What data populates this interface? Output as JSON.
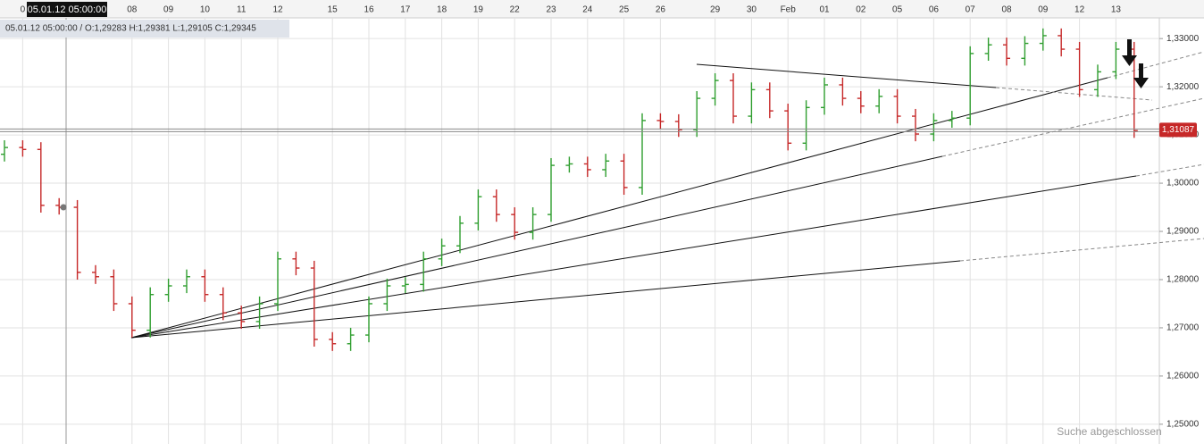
{
  "chart_data": {
    "type": "ohlc",
    "crosshair_time": "05.01.12 05:00:00",
    "info": "05.01.12 05:00:00 / O:1,29283 H:1,29381 L:1,29105 C:1,29345",
    "status": "Suche abgeschlossen",
    "last_price": {
      "value": 1.31087,
      "label": "1,31087"
    },
    "up_color": "#2f9e2f",
    "down_color": "#c62828",
    "grid": true,
    "ylim": [
      1.2459,
      1.338
    ],
    "yticks": [
      {
        "value": 1.33,
        "label": "1,33000"
      },
      {
        "value": 1.32,
        "label": "1,32000"
      },
      {
        "value": 1.31,
        "label": "1,31000"
      },
      {
        "value": 1.3,
        "label": "1,30000"
      },
      {
        "value": 1.29,
        "label": "1,29000"
      },
      {
        "value": 1.28,
        "label": "1,28000"
      },
      {
        "value": 1.27,
        "label": "1,27000"
      },
      {
        "value": 1.26,
        "label": "1,26000"
      },
      {
        "value": 1.25,
        "label": "1,25000"
      }
    ],
    "categories": [
      null,
      "0",
      null,
      null,
      null,
      null,
      null,
      "08",
      null,
      "09",
      null,
      "10",
      null,
      "11",
      null,
      "12",
      null,
      null,
      "15",
      null,
      "16",
      null,
      "17",
      null,
      "18",
      null,
      "19",
      null,
      "22",
      null,
      "23",
      null,
      "24",
      null,
      "25",
      null,
      "26",
      null,
      null,
      "29",
      null,
      "30",
      null,
      "Feb",
      null,
      "01",
      null,
      "02",
      null,
      "05",
      null,
      "06",
      null,
      "07",
      null,
      "08",
      null,
      "09",
      null,
      "12",
      null,
      "13",
      null
    ],
    "open": [
      1.306,
      1.3074,
      1.307,
      1.2954,
      1.295,
      1.2815,
      1.2806,
      1.275,
      1.2695,
      1.2769,
      1.2787,
      1.2806,
      1.2769,
      1.2731,
      1.2713,
      1.275,
      1.2843,
      1.2824,
      1.2676,
      1.2667,
      1.2685,
      1.275,
      1.2787,
      1.279,
      1.2843,
      1.287,
      1.2917,
      1.2972,
      1.2935,
      1.2898,
      1.2935,
      1.3037,
      1.304,
      1.3028,
      1.3046,
      1.2991,
      1.313,
      1.3128,
      1.3111,
      1.3176,
      1.3213,
      1.3139,
      1.3194,
      1.315,
      1.3083,
      1.3157,
      1.3204,
      1.3176,
      1.316,
      1.318,
      1.3139,
      1.3102,
      1.313,
      1.3135,
      1.3269,
      1.3287,
      1.3259,
      1.329,
      1.3306,
      1.3278,
      1.3194,
      1.3231,
      1.3278
    ],
    "high": [
      1.3089,
      1.3089,
      1.3085,
      1.2969,
      1.2965,
      1.283,
      1.2821,
      1.2765,
      1.2784,
      1.2802,
      1.2821,
      1.2821,
      1.2784,
      1.2746,
      1.2765,
      1.2858,
      1.2858,
      1.2839,
      1.2691,
      1.27,
      1.2765,
      1.2802,
      1.2805,
      1.2858,
      1.2885,
      1.2932,
      1.2987,
      1.2987,
      1.295,
      1.295,
      1.3052,
      1.3055,
      1.3055,
      1.3061,
      1.3061,
      1.3145,
      1.3145,
      1.3143,
      1.3191,
      1.3228,
      1.3228,
      1.3209,
      1.3209,
      1.3165,
      1.3172,
      1.3219,
      1.3219,
      1.3191,
      1.3195,
      1.3195,
      1.3154,
      1.3145,
      1.315,
      1.3284,
      1.3302,
      1.3302,
      1.3305,
      1.3321,
      1.3321,
      1.3293,
      1.3246,
      1.3293,
      1.3293
    ],
    "low": [
      1.3045,
      1.3055,
      1.2939,
      1.2935,
      1.28,
      1.2791,
      1.2735,
      1.268,
      1.268,
      1.2754,
      1.2772,
      1.2754,
      1.2716,
      1.2698,
      1.2698,
      1.2735,
      1.2809,
      1.2661,
      1.2652,
      1.2652,
      1.267,
      1.2735,
      1.2772,
      1.2775,
      1.2828,
      1.2855,
      1.2902,
      1.292,
      1.2883,
      1.2883,
      1.292,
      1.3022,
      1.3013,
      1.3013,
      1.2976,
      1.2976,
      1.3113,
      1.3096,
      1.3096,
      1.3161,
      1.3124,
      1.3124,
      1.3135,
      1.3068,
      1.3068,
      1.3142,
      1.3161,
      1.3145,
      1.3145,
      1.3124,
      1.3087,
      1.3087,
      1.3115,
      1.312,
      1.3254,
      1.3244,
      1.3244,
      1.3275,
      1.3263,
      1.3179,
      1.3179,
      1.3216,
      1.3094
    ],
    "close": [
      1.3074,
      1.307,
      1.2954,
      1.295,
      1.2815,
      1.2806,
      1.275,
      1.2695,
      1.2769,
      1.2787,
      1.2806,
      1.2769,
      1.2731,
      1.2713,
      1.275,
      1.2843,
      1.2824,
      1.2676,
      1.2667,
      1.2685,
      1.275,
      1.2787,
      1.279,
      1.2843,
      1.287,
      1.2917,
      1.2972,
      1.2935,
      1.2898,
      1.2935,
      1.3037,
      1.304,
      1.3028,
      1.3046,
      1.2991,
      1.313,
      1.3128,
      1.3111,
      1.3176,
      1.3213,
      1.3139,
      1.3194,
      1.315,
      1.3083,
      1.3157,
      1.3204,
      1.3176,
      1.316,
      1.318,
      1.3139,
      1.3102,
      1.313,
      1.3135,
      1.3269,
      1.3287,
      1.3259,
      1.329,
      1.3306,
      1.3278,
      1.3194,
      1.3231,
      1.3278,
      1.3109
    ]
  }
}
